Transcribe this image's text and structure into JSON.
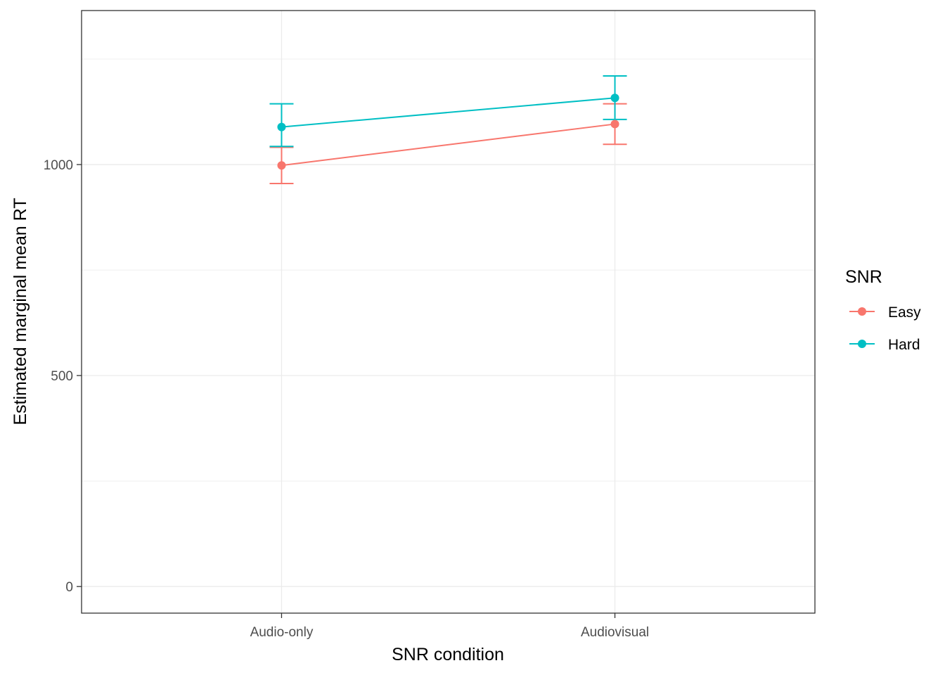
{
  "chart_data": {
    "type": "line",
    "title": "",
    "xlabel": "SNR condition",
    "ylabel": "Estimated marginal mean RT",
    "categories": [
      "Audio-only",
      "Audiovisual"
    ],
    "ylim": [
      -63,
      1365
    ],
    "yticks": [
      0,
      500,
      1000
    ],
    "ytick_labels": [
      "0",
      "500",
      "1000"
    ],
    "grid": true,
    "legend": {
      "title": "SNR",
      "position": "right"
    },
    "series": [
      {
        "name": "Easy",
        "color": "#F8766D",
        "values": [
          998,
          1096
        ],
        "lower": [
          955,
          1048
        ],
        "upper": [
          1041,
          1144
        ]
      },
      {
        "name": "Hard",
        "color": "#00BFC4",
        "values": [
          1089,
          1158
        ],
        "lower": [
          1043,
          1107
        ],
        "upper": [
          1144,
          1210
        ]
      }
    ]
  }
}
